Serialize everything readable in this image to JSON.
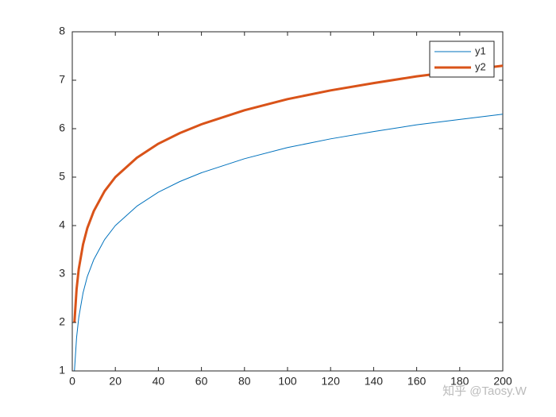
{
  "chart_data": {
    "type": "line",
    "x": [
      1,
      2,
      3,
      5,
      7,
      10,
      15,
      20,
      30,
      40,
      50,
      60,
      80,
      100,
      120,
      140,
      160,
      180,
      200
    ],
    "series": [
      {
        "name": "y1",
        "color": "#0072bd",
        "values": [
          1,
          1.69,
          2.1,
          2.61,
          2.95,
          3.3,
          3.71,
          4,
          4.4,
          4.69,
          4.91,
          5.09,
          5.38,
          5.61,
          5.79,
          5.94,
          6.08,
          6.19,
          6.3
        ]
      },
      {
        "name": "y2",
        "color": "#d95319",
        "values": [
          2,
          2.69,
          3.1,
          3.61,
          3.95,
          4.3,
          4.71,
          5,
          5.4,
          5.69,
          5.91,
          6.09,
          6.38,
          6.61,
          6.79,
          6.94,
          7.08,
          7.19,
          7.3
        ]
      }
    ],
    "xlim": [
      0,
      200
    ],
    "xticks": [
      0,
      20,
      40,
      60,
      80,
      100,
      120,
      140,
      160,
      180,
      200
    ],
    "ylim": [
      1,
      8
    ],
    "yticks": [
      1,
      2,
      3,
      4,
      5,
      6,
      7,
      8
    ],
    "grid": false,
    "legend": "northeast",
    "watermark": "知乎 @Taosy.W"
  }
}
